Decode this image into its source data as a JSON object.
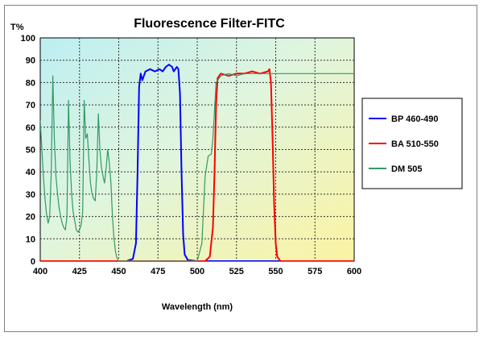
{
  "chart_data": {
    "type": "line",
    "title": "Fluorescence Filter-FITC",
    "xlabel": "Wavelength (nm)",
    "ylabel": "T%",
    "xlim": [
      400,
      600
    ],
    "ylim": [
      0,
      100
    ],
    "x_ticks": [
      "400",
      "425",
      "450",
      "475",
      "500",
      "525",
      "550",
      "575",
      "600"
    ],
    "y_ticks": [
      "0",
      "10",
      "20",
      "30",
      "40",
      "50",
      "60",
      "70",
      "80",
      "90",
      "100"
    ],
    "grid": true,
    "legend_position": "right",
    "series": [
      {
        "name": "BP 460-490",
        "color": "#0000ff",
        "points": [
          [
            400,
            0
          ],
          [
            455,
            0
          ],
          [
            459,
            1
          ],
          [
            461,
            8
          ],
          [
            462,
            40
          ],
          [
            463,
            78
          ],
          [
            464,
            84
          ],
          [
            465,
            81
          ],
          [
            467,
            85
          ],
          [
            470,
            86
          ],
          [
            473,
            85
          ],
          [
            476,
            86
          ],
          [
            478,
            85
          ],
          [
            480,
            87
          ],
          [
            482,
            88
          ],
          [
            484,
            87
          ],
          [
            485,
            85
          ],
          [
            487,
            87
          ],
          [
            488,
            86
          ],
          [
            489,
            75
          ],
          [
            490,
            40
          ],
          [
            491,
            12
          ],
          [
            492,
            3
          ],
          [
            494,
            0.5
          ],
          [
            500,
            0
          ],
          [
            600,
            0
          ]
        ]
      },
      {
        "name": "BA 510-550",
        "color": "#ff0000",
        "points": [
          [
            400,
            0
          ],
          [
            505,
            0
          ],
          [
            508,
            2
          ],
          [
            510,
            15
          ],
          [
            511,
            40
          ],
          [
            512,
            70
          ],
          [
            513,
            82
          ],
          [
            515,
            84
          ],
          [
            520,
            83
          ],
          [
            525,
            84
          ],
          [
            530,
            84
          ],
          [
            535,
            85
          ],
          [
            540,
            84
          ],
          [
            545,
            85
          ],
          [
            546,
            86
          ],
          [
            547,
            80
          ],
          [
            548,
            55
          ],
          [
            549,
            25
          ],
          [
            550,
            8
          ],
          [
            551,
            2
          ],
          [
            553,
            0
          ],
          [
            600,
            0
          ]
        ]
      },
      {
        "name": "DM 505",
        "color": "#339966",
        "points": [
          [
            400,
            63
          ],
          [
            401,
            50
          ],
          [
            402,
            38
          ],
          [
            403,
            28
          ],
          [
            404,
            21
          ],
          [
            405,
            17
          ],
          [
            406,
            20
          ],
          [
            407,
            40
          ],
          [
            408,
            83
          ],
          [
            409,
            55
          ],
          [
            410,
            38
          ],
          [
            411,
            30
          ],
          [
            412,
            24
          ],
          [
            413,
            20
          ],
          [
            414,
            17
          ],
          [
            415,
            15
          ],
          [
            416,
            14
          ],
          [
            417,
            20
          ],
          [
            418,
            72
          ],
          [
            419,
            45
          ],
          [
            420,
            30
          ],
          [
            421,
            22
          ],
          [
            422,
            18
          ],
          [
            423,
            14
          ],
          [
            424,
            13
          ],
          [
            425,
            14
          ],
          [
            426,
            16
          ],
          [
            427,
            22
          ],
          [
            428,
            72
          ],
          [
            429,
            55
          ],
          [
            430,
            57
          ],
          [
            431,
            45
          ],
          [
            432,
            35
          ],
          [
            433,
            30
          ],
          [
            434,
            28
          ],
          [
            435,
            27
          ],
          [
            436,
            40
          ],
          [
            437,
            66
          ],
          [
            438,
            50
          ],
          [
            439,
            42
          ],
          [
            440,
            38
          ],
          [
            441,
            35
          ],
          [
            442,
            42
          ],
          [
            443,
            50
          ],
          [
            444,
            44
          ],
          [
            445,
            35
          ],
          [
            446,
            20
          ],
          [
            447,
            10
          ],
          [
            448,
            4
          ],
          [
            449,
            1
          ],
          [
            450,
            0
          ],
          [
            500,
            0
          ],
          [
            503,
            8
          ],
          [
            505,
            38
          ],
          [
            507,
            47
          ],
          [
            509,
            48
          ],
          [
            510,
            55
          ],
          [
            512,
            80
          ],
          [
            515,
            83
          ],
          [
            520,
            84
          ],
          [
            525,
            83
          ],
          [
            530,
            84
          ],
          [
            540,
            84
          ],
          [
            550,
            84
          ],
          [
            560,
            84
          ],
          [
            570,
            84
          ],
          [
            580,
            84
          ],
          [
            590,
            84
          ],
          [
            600,
            84
          ]
        ]
      }
    ]
  }
}
